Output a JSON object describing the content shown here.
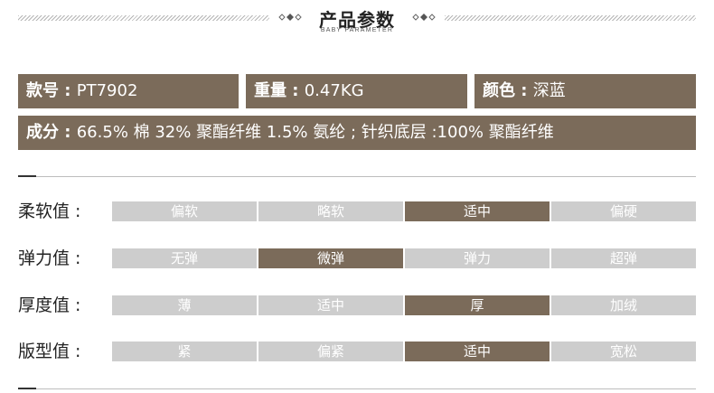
{
  "header": {
    "title": "产品参数",
    "subtitle": "BABY PARAMETER"
  },
  "specs": {
    "item_no": {
      "label": "款号",
      "sep": " : ",
      "value": "PT7902"
    },
    "weight": {
      "label": "重量",
      "sep": " : ",
      "value": "0.47KG"
    },
    "color": {
      "label": "颜色",
      "sep": " : ",
      "value": "深蓝"
    },
    "composition": {
      "label": "成分",
      "sep": " : ",
      "value": "66.5% 棉  32% 聚酯纤维  1.5% 氨纶 ; 针织底层 :100% 聚酯纤维"
    }
  },
  "attributes": [
    {
      "label": "柔软值 :",
      "options": [
        "偏软",
        "略软",
        "适中",
        "偏硬"
      ],
      "selected": 2
    },
    {
      "label": "弹力值 :",
      "options": [
        "无弹",
        "微弹",
        "弹力",
        "超弹"
      ],
      "selected": 1
    },
    {
      "label": "厚度值 :",
      "options": [
        "薄",
        "适中",
        "厚",
        "加绒"
      ],
      "selected": 2
    },
    {
      "label": "版型值 :",
      "options": [
        "紧",
        "偏紧",
        "适中",
        "宽松"
      ],
      "selected": 2
    }
  ],
  "colors": {
    "accent": "#7b6b5a",
    "inactive": "#cdcdcd"
  }
}
